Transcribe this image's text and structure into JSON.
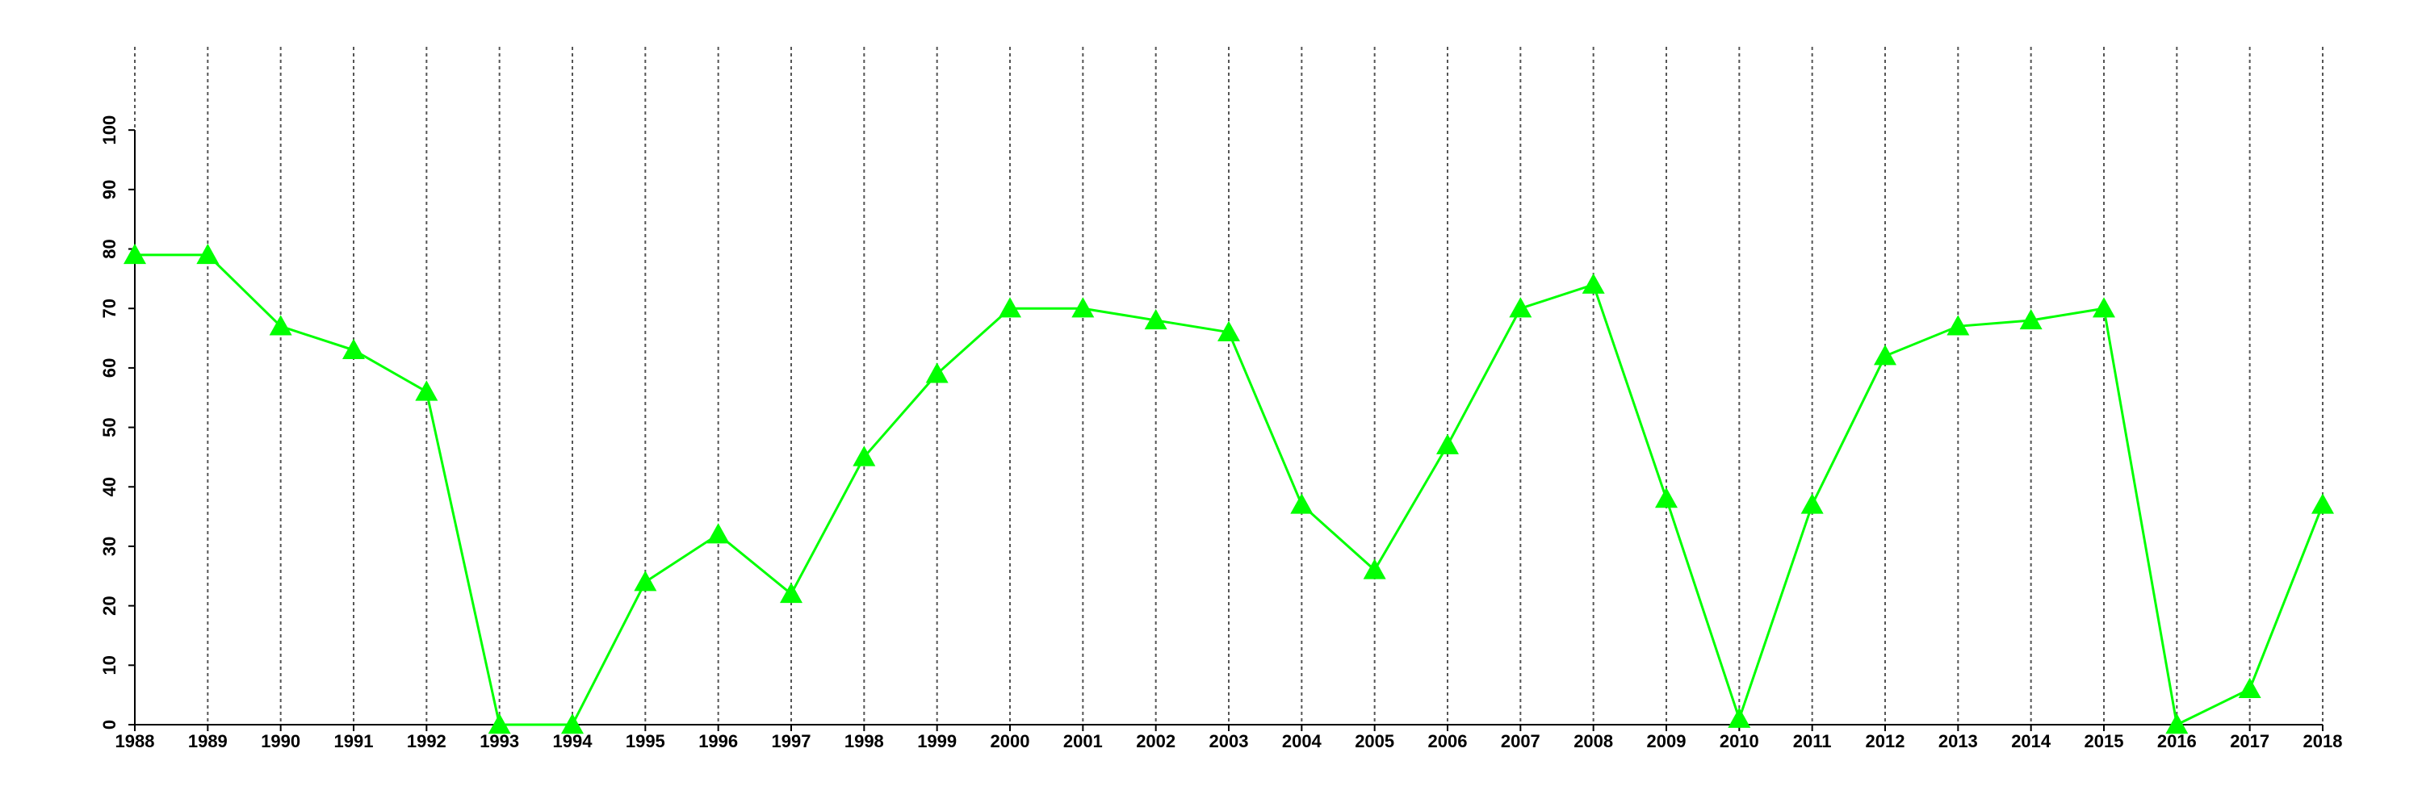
{
  "chart_data": {
    "type": "line",
    "color": "#00ff00",
    "x": [
      1988,
      1989,
      1990,
      1991,
      1992,
      1993,
      1994,
      1995,
      1996,
      1997,
      1998,
      1999,
      2000,
      2001,
      2002,
      2003,
      2004,
      2005,
      2006,
      2007,
      2008,
      2009,
      2010,
      2011,
      2012,
      2013,
      2014,
      2015,
      2016,
      2017,
      2018
    ],
    "values": [
      79,
      79,
      67,
      63,
      56,
      0,
      0,
      24,
      32,
      22,
      45,
      59,
      70,
      70,
      68,
      66,
      37,
      26,
      47,
      70,
      74,
      38,
      1,
      37,
      62,
      67,
      68,
      70,
      0,
      6,
      37
    ],
    "xlim": [
      1988,
      2018
    ],
    "xticks": [
      1988,
      1989,
      1990,
      1991,
      1992,
      1993,
      1994,
      1995,
      1996,
      1997,
      1998,
      1999,
      2000,
      2001,
      2002,
      2003,
      2004,
      2005,
      2006,
      2007,
      2008,
      2009,
      2010,
      2011,
      2012,
      2013,
      2014,
      2015,
      2016,
      2017,
      2018
    ],
    "ylim": [
      0,
      114
    ],
    "yticks": [
      0,
      10,
      20,
      30,
      40,
      50,
      60,
      70,
      80,
      90,
      100
    ],
    "grid": true
  }
}
